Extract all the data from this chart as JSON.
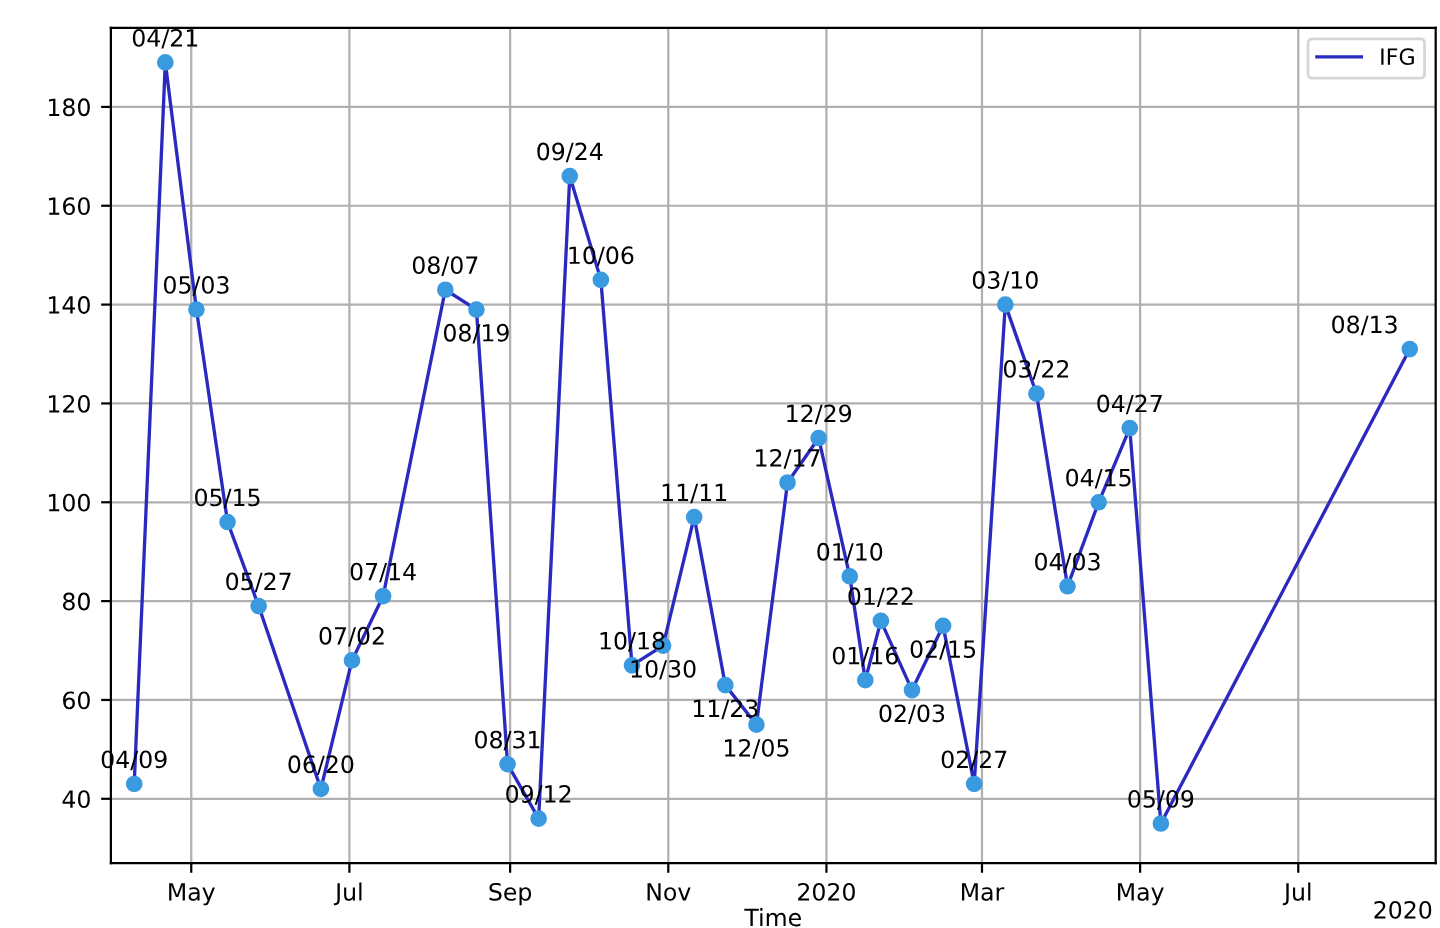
{
  "chart_data": {
    "type": "line",
    "xlabel": "Time",
    "x": [
      "2019-04-09",
      "2019-04-21",
      "2019-05-03",
      "2019-05-15",
      "2019-05-27",
      "2019-06-20",
      "2019-07-02",
      "2019-07-14",
      "2019-08-07",
      "2019-08-19",
      "2019-08-31",
      "2019-09-12",
      "2019-09-24",
      "2019-10-06",
      "2019-10-18",
      "2019-10-30",
      "2019-11-11",
      "2019-11-23",
      "2019-12-05",
      "2019-12-17",
      "2019-12-29",
      "2020-01-10",
      "2020-01-16",
      "2020-01-22",
      "2020-02-03",
      "2020-02-15",
      "2020-02-27",
      "2020-03-10",
      "2020-03-22",
      "2020-04-03",
      "2020-04-15",
      "2020-04-27",
      "2020-05-09",
      "2020-08-13"
    ],
    "series": [
      {
        "name": "IFG",
        "color": "#2a2ac0",
        "values": [
          43,
          189,
          139,
          96,
          79,
          42,
          68,
          81,
          143,
          139,
          47,
          36,
          166,
          145,
          67,
          71,
          97,
          63,
          55,
          104,
          113,
          85,
          64,
          76,
          62,
          75,
          43,
          140,
          122,
          83,
          100,
          115,
          35,
          131
        ]
      }
    ],
    "annotations": [
      {
        "text": "04/09",
        "x": "2019-04-09",
        "y": 43
      },
      {
        "text": "04/21",
        "x": "2019-04-21",
        "y": 189
      },
      {
        "text": "05/03",
        "x": "2019-05-03",
        "y": 139
      },
      {
        "text": "05/15",
        "x": "2019-05-15",
        "y": 96
      },
      {
        "text": "05/27",
        "x": "2019-05-27",
        "y": 79
      },
      {
        "text": "06/20",
        "x": "2019-06-20",
        "y": 42
      },
      {
        "text": "07/02",
        "x": "2019-07-02",
        "y": 68
      },
      {
        "text": "07/14",
        "x": "2019-07-14",
        "y": 81
      },
      {
        "text": "08/07",
        "x": "2019-08-07",
        "y": 143
      },
      {
        "text": "08/19",
        "x": "2019-08-19",
        "y": 139
      },
      {
        "text": "08/31",
        "x": "2019-08-31",
        "y": 47
      },
      {
        "text": "09/12",
        "x": "2019-09-12",
        "y": 36
      },
      {
        "text": "09/24",
        "x": "2019-09-24",
        "y": 166
      },
      {
        "text": "10/06",
        "x": "2019-10-06",
        "y": 145
      },
      {
        "text": "10/18",
        "x": "2019-10-18",
        "y": 67
      },
      {
        "text": "10/30",
        "x": "2019-10-30",
        "y": 71
      },
      {
        "text": "11/11",
        "x": "2019-11-11",
        "y": 97
      },
      {
        "text": "11/23",
        "x": "2019-11-23",
        "y": 63
      },
      {
        "text": "12/05",
        "x": "2019-12-05",
        "y": 55
      },
      {
        "text": "12/17",
        "x": "2019-12-17",
        "y": 104
      },
      {
        "text": "12/29",
        "x": "2019-12-29",
        "y": 113
      },
      {
        "text": "01/10",
        "x": "2020-01-10",
        "y": 85
      },
      {
        "text": "01/16",
        "x": "2020-01-16",
        "y": 64
      },
      {
        "text": "01/22",
        "x": "2020-01-22",
        "y": 76
      },
      {
        "text": "02/03",
        "x": "2020-02-03",
        "y": 62
      },
      {
        "text": "02/15",
        "x": "2020-02-15",
        "y": 75
      },
      {
        "text": "02/27",
        "x": "2020-02-27",
        "y": 43
      },
      {
        "text": "03/10",
        "x": "2020-03-10",
        "y": 140
      },
      {
        "text": "03/22",
        "x": "2020-03-22",
        "y": 122
      },
      {
        "text": "04/03",
        "x": "2020-04-03",
        "y": 83
      },
      {
        "text": "04/15",
        "x": "2020-04-15",
        "y": 100
      },
      {
        "text": "04/27",
        "x": "2020-04-27",
        "y": 115
      },
      {
        "text": "05/09",
        "x": "2020-05-09",
        "y": 35
      },
      {
        "text": "08/13",
        "x": "2020-08-13",
        "y": 131
      },
      "2020"
    ],
    "xlim": [
      "2019-03-31",
      "2020-08-23"
    ],
    "xticks": [
      {
        "value": "2019-05-01",
        "label": "May"
      },
      {
        "value": "2019-07-01",
        "label": "Jul"
      },
      {
        "value": "2019-09-01",
        "label": "Sep"
      },
      {
        "value": "2019-11-01",
        "label": "Nov"
      },
      {
        "value": "2020-01-01",
        "label": "2020"
      },
      {
        "value": "2020-03-01",
        "label": "Mar"
      },
      {
        "value": "2020-05-01",
        "label": "May"
      },
      {
        "value": "2020-07-01",
        "label": "Jul"
      }
    ],
    "ylim": [
      27,
      196
    ],
    "yticks": [
      40,
      60,
      80,
      100,
      120,
      140,
      160,
      180
    ],
    "grid": true,
    "legend": "top right",
    "marker": "circle",
    "line_style": "solid"
  }
}
